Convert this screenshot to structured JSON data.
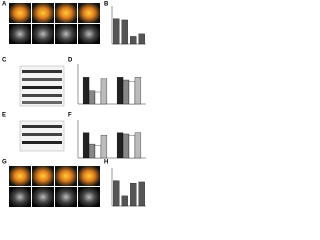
{
  "figure": {
    "panel_labels": [
      "A",
      "B",
      "C",
      "D",
      "E",
      "F",
      "G",
      "H"
    ]
  },
  "chart_data": [
    {
      "type": "bar",
      "categories": [
        null,
        null,
        null,
        null
      ],
      "series": [
        {
          "color": "#555555",
          "values": [
            1.0,
            0.95,
            0.3,
            0.4
          ]
        }
      ],
      "ylim": [
        0,
        1.5
      ]
    },
    {
      "type": "bar",
      "categories": [
        null,
        null
      ],
      "series": [
        {
          "color": "#222222",
          "values": [
            1.0,
            1.0
          ]
        },
        {
          "color": "#888888",
          "values": [
            0.5,
            0.9
          ]
        },
        {
          "color": "#ffffff",
          "values": [
            0.45,
            0.85
          ]
        },
        {
          "color": "#bbbbbb",
          "values": [
            0.95,
            1.0
          ]
        }
      ],
      "ylim": [
        0,
        1.5
      ]
    },
    {
      "type": "bar",
      "categories": [
        null,
        null
      ],
      "series": [
        {
          "color": "#222222",
          "values": [
            1.0,
            1.0
          ]
        },
        {
          "color": "#888888",
          "values": [
            0.55,
            0.95
          ]
        },
        {
          "color": "#ffffff",
          "values": [
            0.5,
            0.9
          ]
        },
        {
          "color": "#bbbbbb",
          "values": [
            0.9,
            1.0
          ]
        }
      ],
      "ylim": [
        0,
        1.5
      ]
    },
    {
      "type": "bar",
      "categories": [
        null,
        null,
        null,
        null
      ],
      "series": [
        {
          "color": "#555555",
          "values": [
            1.0,
            0.4,
            0.9,
            0.95
          ]
        }
      ],
      "ylim": [
        0,
        1.5
      ]
    }
  ]
}
